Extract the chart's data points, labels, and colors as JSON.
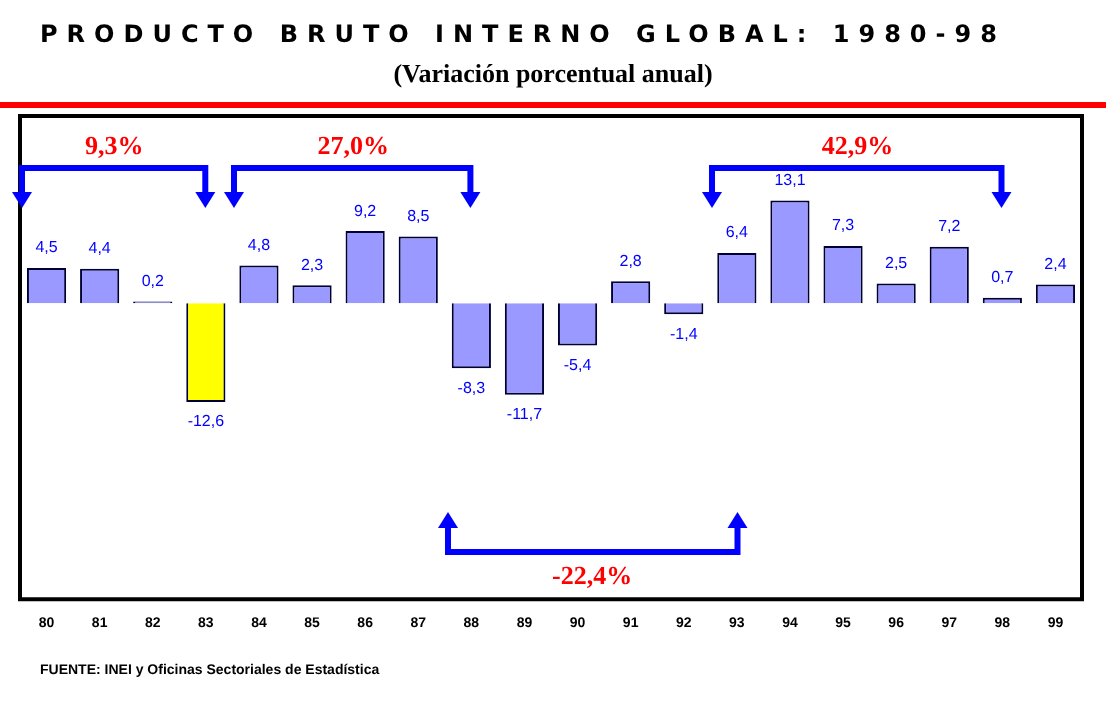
{
  "chart_data": {
    "type": "bar",
    "title": "PRODUCTO BRUTO INTERNO GLOBAL: 1980-98",
    "subtitle": "(Variación porcentual anual)",
    "categories": [
      "80",
      "81",
      "82",
      "83",
      "84",
      "85",
      "86",
      "87",
      "88",
      "89",
      "90",
      "91",
      "92",
      "93",
      "94",
      "95",
      "96",
      "97",
      "98",
      "99"
    ],
    "values": [
      4.5,
      4.4,
      0.2,
      -12.6,
      4.8,
      2.3,
      9.2,
      8.5,
      -8.3,
      -11.7,
      -5.4,
      2.8,
      -1.4,
      6.4,
      13.1,
      7.3,
      2.5,
      7.2,
      0.7,
      2.4
    ],
    "colors": [
      "#9999ff",
      "#9999ff",
      "#9999ff",
      "#ffff00",
      "#9999ff",
      "#9999ff",
      "#9999ff",
      "#9999ff",
      "#9999ff",
      "#9999ff",
      "#9999ff",
      "#9999ff",
      "#9999ff",
      "#9999ff",
      "#9999ff",
      "#9999ff",
      "#9999ff",
      "#9999ff",
      "#9999ff",
      "#9999ff"
    ],
    "value_labels": [
      "4,5",
      "4,4",
      "0,2",
      "-12,6",
      "4,8",
      "2,3",
      "9,2",
      "8,5",
      "-8,3",
      "-11,7",
      "-5,4",
      "2,8",
      "-1,4",
      "6,4",
      "13,1",
      "7,3",
      "2,5",
      "7,2",
      "0,7",
      "2,4"
    ],
    "grid": false,
    "legend": false,
    "annotations": [
      "9,3%",
      "27,0%",
      "42,9%",
      "-22,4%",
      "FUENTE: INEI y Oficinas Sectoriales de Estadística"
    ]
  }
}
